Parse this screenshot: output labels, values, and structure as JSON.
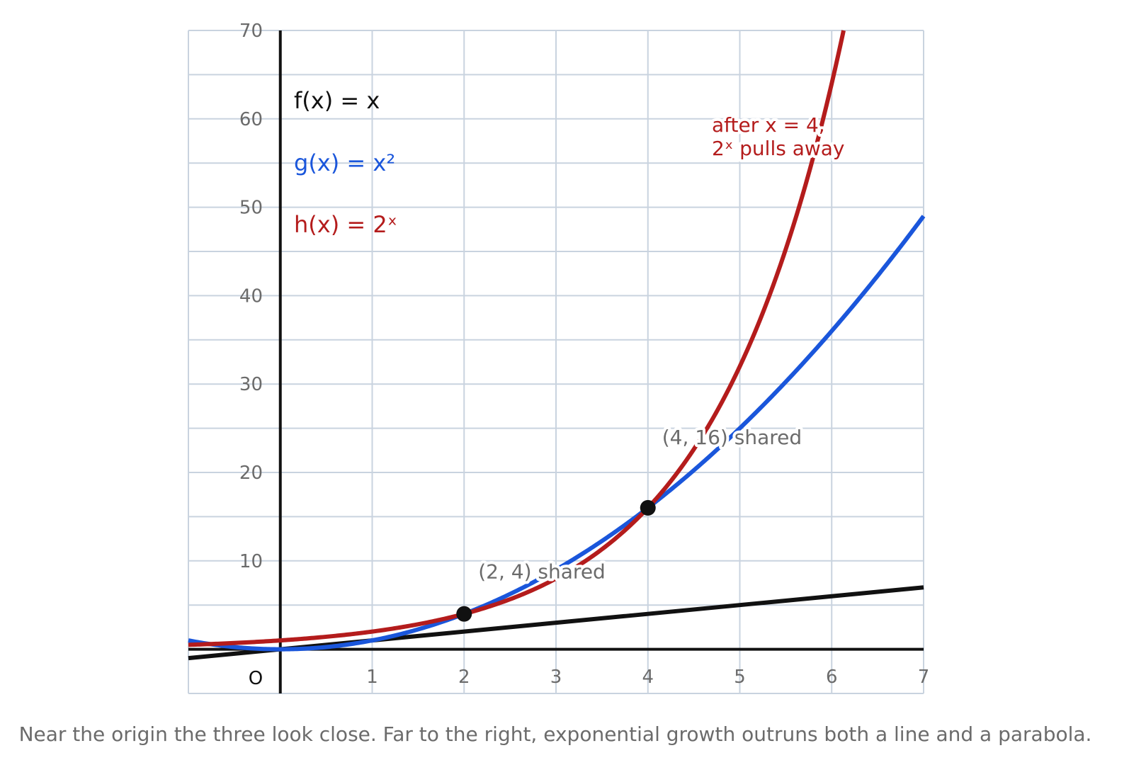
{
  "chart_data": {
    "type": "line",
    "origin_label": "O",
    "xlim": [
      -1,
      7
    ],
    "ylim": [
      -5,
      70
    ],
    "x_ticks": [
      1,
      2,
      3,
      4,
      5,
      6,
      7
    ],
    "y_ticks": [
      10,
      20,
      30,
      40,
      50,
      60,
      70
    ],
    "grid": true,
    "series": [
      {
        "name": "f(x) = x",
        "formula": "x",
        "color": "#111111",
        "x": [
          -1,
          0,
          1,
          2,
          3,
          4,
          5,
          6,
          7
        ],
        "y": [
          -1,
          0,
          1,
          2,
          3,
          4,
          5,
          6,
          7
        ]
      },
      {
        "name": "g(x) = x²",
        "formula": "x^2",
        "color": "#1a56db",
        "x": [
          -1,
          0,
          1,
          2,
          3,
          4,
          5,
          6,
          7
        ],
        "y": [
          1,
          0,
          1,
          4,
          9,
          16,
          25,
          36,
          49
        ]
      },
      {
        "name": "h(x) = 2ˣ",
        "formula": "2^x",
        "color": "#b41c1c",
        "x": [
          -1,
          0,
          1,
          2,
          3,
          4,
          5,
          6,
          6.13
        ],
        "y": [
          0.5,
          1,
          2,
          4,
          8,
          16,
          32,
          64,
          70
        ]
      }
    ],
    "points": [
      {
        "x": 2,
        "y": 4,
        "label": "(2, 4) shared"
      },
      {
        "x": 4,
        "y": 16,
        "label": "(4, 16) shared"
      }
    ],
    "annotations": [
      {
        "lines": [
          "after x = 4,",
          "2ˣ pulls away"
        ],
        "color": "#b41c1c",
        "x": 4.7,
        "y": 60
      }
    ],
    "caption": "Near the origin the three look close. Far to the right, exponential growth outruns both a line and a parabola."
  }
}
